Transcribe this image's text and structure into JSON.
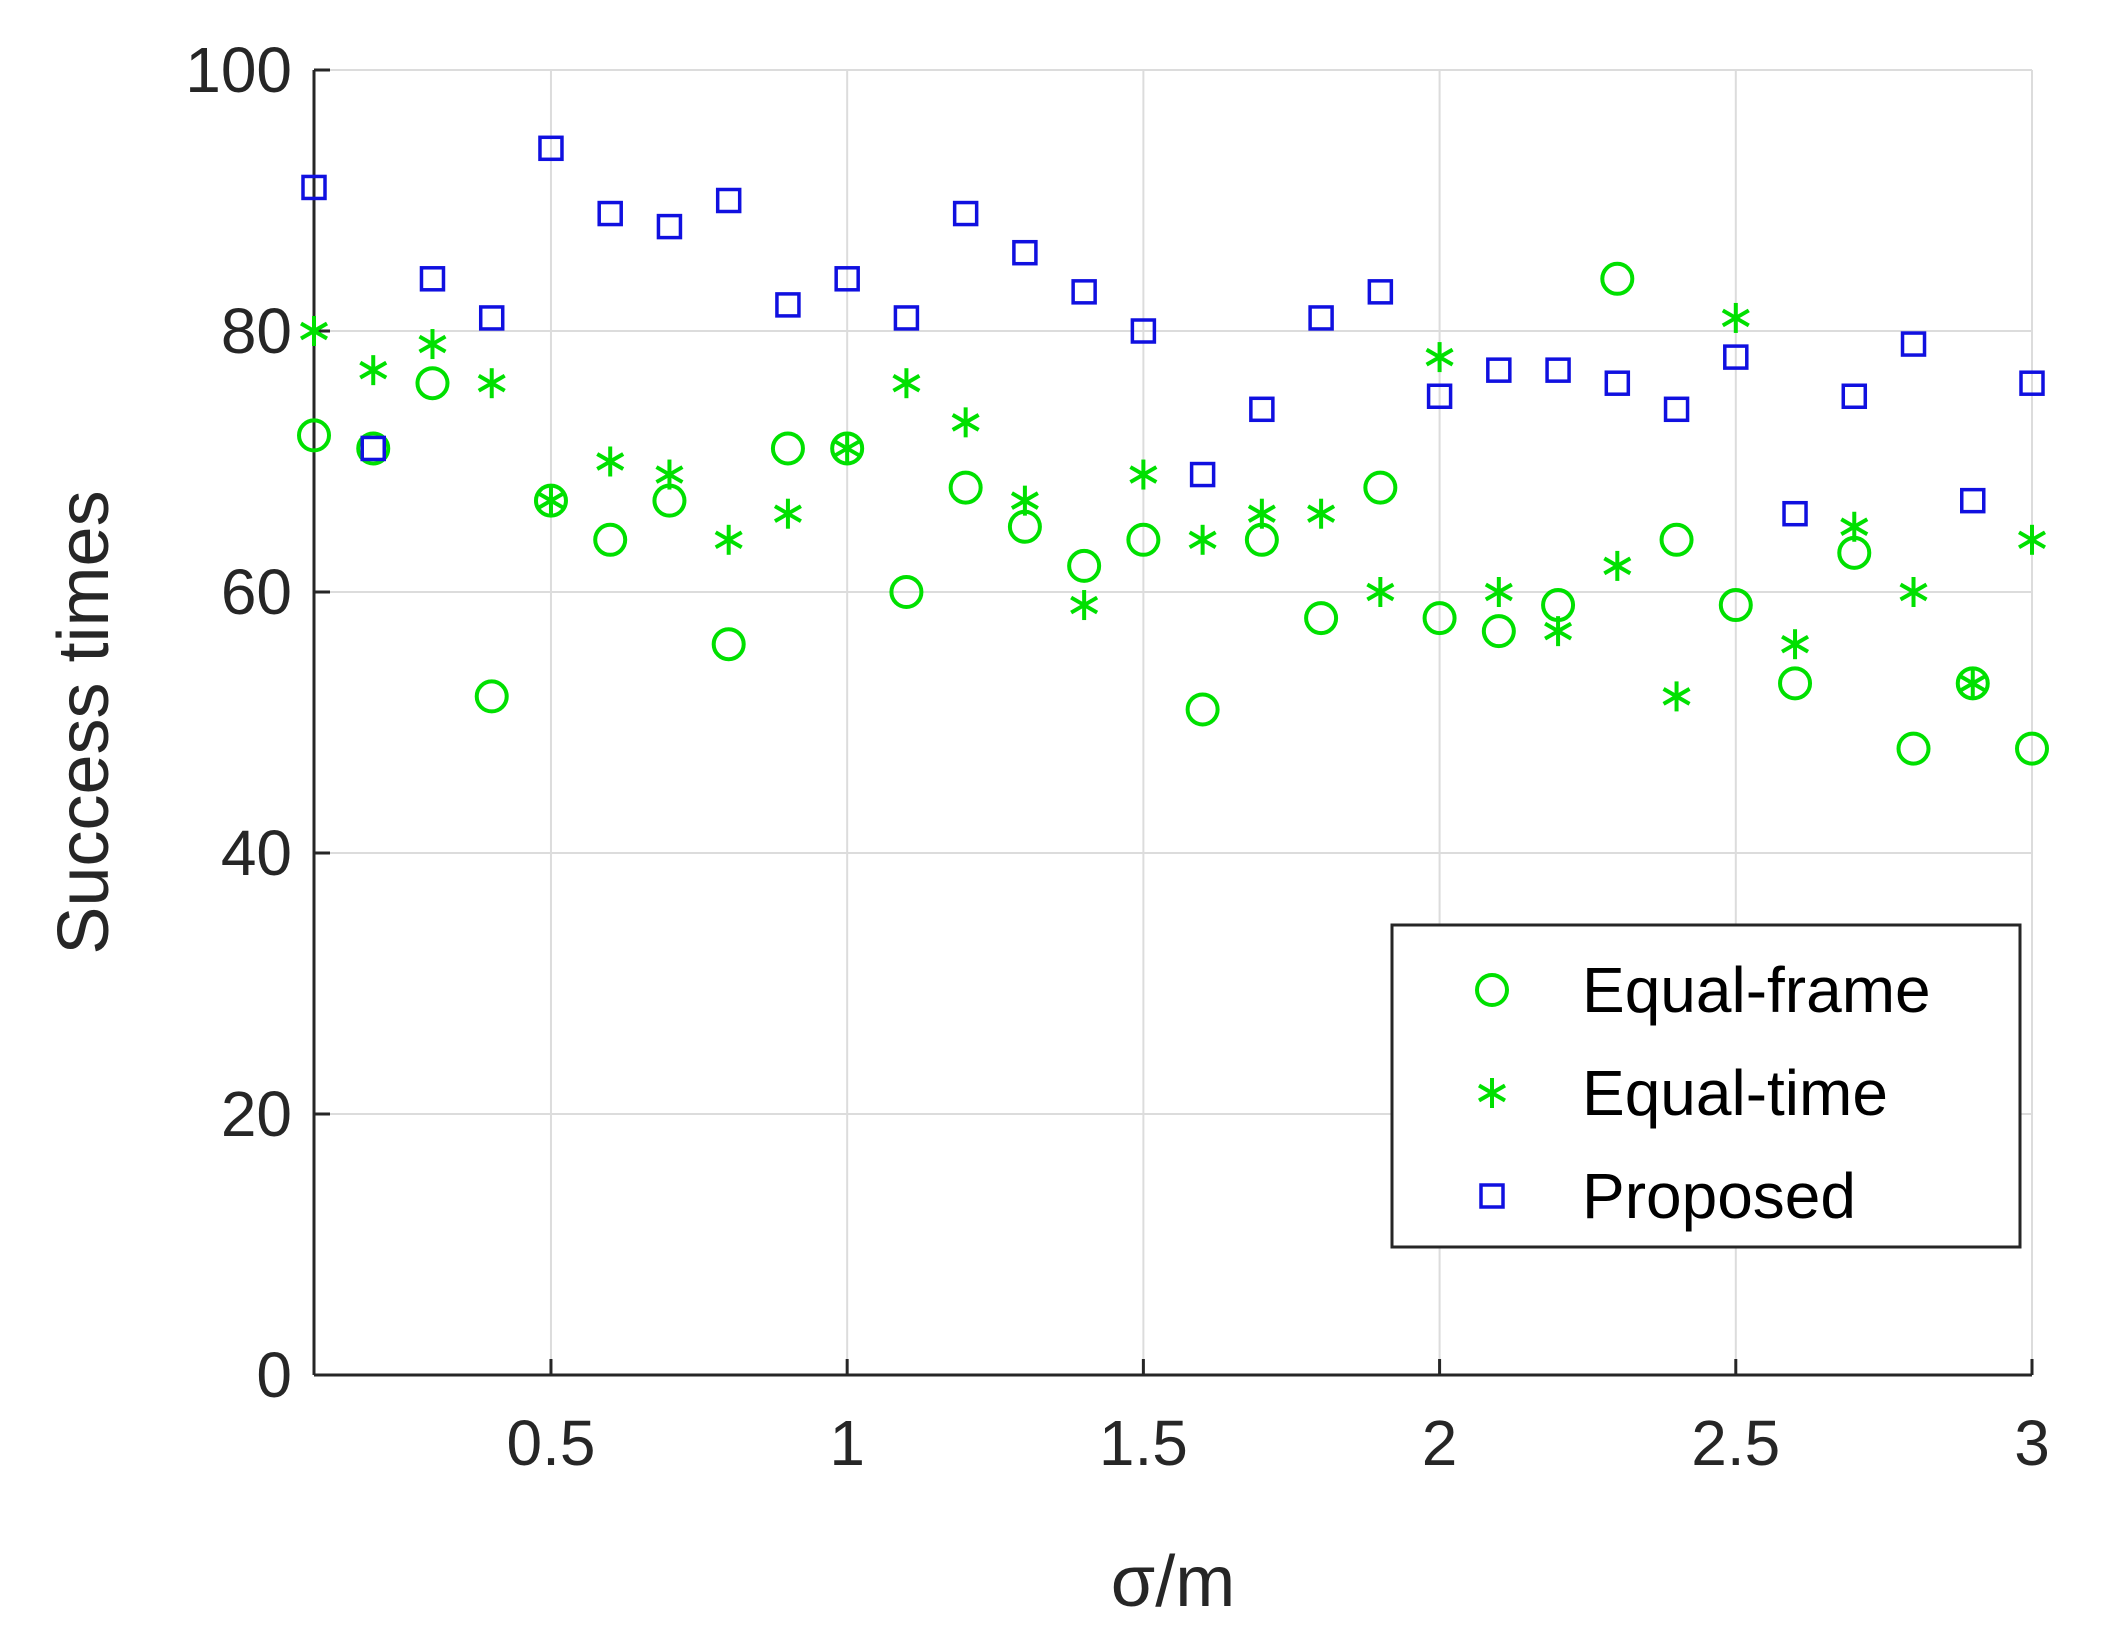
{
  "chart_data": {
    "type": "scatter",
    "xlabel": "σ/m",
    "ylabel": "Success times",
    "xlim": [
      0.1,
      3
    ],
    "ylim": [
      0,
      100
    ],
    "x_ticks": [
      0.5,
      1,
      1.5,
      2,
      2.5,
      3
    ],
    "x_tick_labels": [
      "0.5",
      "1",
      "1.5",
      "2",
      "2.5",
      "3"
    ],
    "y_ticks": [
      0,
      20,
      40,
      60,
      80,
      100
    ],
    "y_tick_labels": [
      "0",
      "20",
      "40",
      "60",
      "80",
      "100"
    ],
    "grid": true,
    "legend_position": "bottom-right",
    "x": [
      0.1,
      0.2,
      0.3,
      0.4,
      0.5,
      0.6,
      0.7,
      0.8,
      0.9,
      1.0,
      1.1,
      1.2,
      1.3,
      1.4,
      1.5,
      1.6,
      1.7,
      1.8,
      1.9,
      2.0,
      2.1,
      2.2,
      2.3,
      2.4,
      2.5,
      2.6,
      2.7,
      2.8,
      2.9,
      3.0
    ],
    "series": [
      {
        "name": "Equal-frame",
        "marker": "circle",
        "color": "#00e000",
        "values": [
          72,
          71,
          76,
          52,
          67,
          64,
          67,
          56,
          71,
          71,
          60,
          68,
          65,
          62,
          64,
          51,
          64,
          58,
          68,
          58,
          57,
          59,
          84,
          64,
          59,
          53,
          63,
          48,
          53,
          48
        ]
      },
      {
        "name": "Equal-time",
        "marker": "star",
        "color": "#00e000",
        "values": [
          80,
          77,
          79,
          76,
          67,
          70,
          69,
          64,
          66,
          71,
          76,
          73,
          67,
          59,
          69,
          64,
          66,
          66,
          60,
          78,
          60,
          57,
          62,
          52,
          81,
          56,
          65,
          60,
          53,
          64
        ]
      },
      {
        "name": "Proposed",
        "marker": "square",
        "color": "#1010e0",
        "values": [
          91,
          71,
          84,
          81,
          94,
          89,
          88,
          90,
          82,
          84,
          81,
          89,
          86,
          83,
          80,
          69,
          74,
          81,
          83,
          75,
          77,
          77,
          76,
          74,
          78,
          66,
          75,
          79,
          67,
          76
        ]
      }
    ]
  }
}
